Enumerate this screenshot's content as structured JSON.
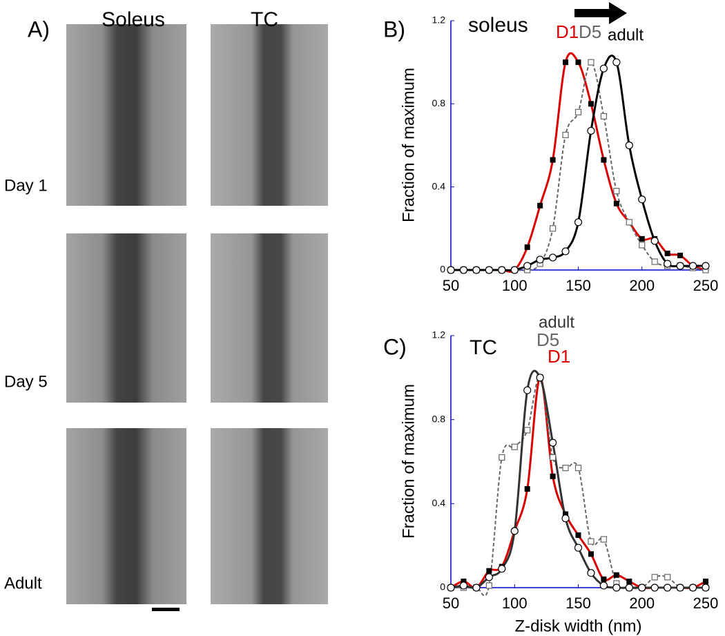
{
  "panel_a": {
    "label": "A)",
    "columns": [
      "Soleus",
      "TC"
    ],
    "rows": [
      "Day 1",
      "Day 5",
      "Adult"
    ]
  },
  "chart_data": [
    {
      "type": "line",
      "panel_label": "B)",
      "title": "soleus",
      "y_label": "Fraction of maximum",
      "x": [
        50,
        60,
        70,
        80,
        90,
        100,
        110,
        120,
        130,
        140,
        150,
        160,
        170,
        180,
        190,
        200,
        210,
        220,
        230,
        240,
        250
      ],
      "xlim": [
        50,
        250
      ],
      "xticks": [
        50,
        100,
        150,
        200,
        250
      ],
      "ylim": [
        0,
        1.2
      ],
      "yticks": [
        0,
        0.4,
        0.8,
        1.2
      ],
      "axis_color": "#0000cc",
      "series": [
        {
          "name": "D1",
          "color": "#dd0000",
          "marker": "filled-square",
          "marker_color": "#000000",
          "dashed": false,
          "values": [
            0,
            0,
            0,
            0,
            0,
            0,
            0.11,
            0.31,
            0.53,
            1.0,
            1.0,
            0.8,
            0.53,
            0.32,
            0.23,
            0.15,
            0.15,
            0.08,
            0.07,
            0.02,
            0
          ]
        },
        {
          "name": "D5",
          "color": "#666666",
          "marker": "open-square",
          "marker_color": "#666666",
          "dashed": true,
          "values": [
            0,
            0,
            0,
            0,
            0,
            0,
            0,
            0.03,
            0.2,
            0.65,
            0.76,
            1.0,
            0.74,
            0.38,
            0.23,
            0.12,
            0.04,
            0.02,
            0.02,
            0.01,
            0
          ]
        },
        {
          "name": "adult",
          "color": "#000000",
          "marker": "circle",
          "marker_color": "#000000",
          "dashed": false,
          "values": [
            0,
            0,
            0,
            0,
            0,
            0,
            0.02,
            0.05,
            0.06,
            0.09,
            0.23,
            0.67,
            0.97,
            1.0,
            0.6,
            0.34,
            0.14,
            0.03,
            0.02,
            0.02,
            0.02
          ]
        }
      ]
    },
    {
      "type": "line",
      "panel_label": "C)",
      "title": "TC",
      "y_label": "Fraction of maximum",
      "x_label": "Z-disk width (nm)",
      "x": [
        50,
        60,
        70,
        80,
        90,
        100,
        110,
        120,
        130,
        140,
        150,
        160,
        170,
        180,
        190,
        200,
        210,
        220,
        230,
        240,
        250
      ],
      "xlim": [
        50,
        250
      ],
      "xticks": [
        50,
        100,
        150,
        200,
        250
      ],
      "ylim": [
        0,
        1.2
      ],
      "yticks": [
        0,
        0.4,
        0.8,
        1.2
      ],
      "axis_color": "#0000cc",
      "series": [
        {
          "name": "D1",
          "color": "#dd0000",
          "marker": "filled-square",
          "marker_color": "#000000",
          "dashed": false,
          "values": [
            0,
            0.03,
            0,
            0.08,
            0.1,
            0.27,
            0.47,
            1.0,
            0.53,
            0.35,
            0.25,
            0.16,
            0.04,
            0.06,
            0.03,
            0,
            0,
            0,
            0,
            0,
            0.03
          ]
        },
        {
          "name": "D5",
          "color": "#666666",
          "marker": "open-square",
          "marker_color": "#666666",
          "dashed": true,
          "values": [
            0,
            0,
            0,
            0.01,
            0.62,
            0.67,
            0.75,
            1.0,
            0.62,
            0.57,
            0.57,
            0.22,
            0.23,
            0.02,
            0,
            0,
            0.05,
            0.05,
            0,
            0,
            0
          ]
        },
        {
          "name": "adult",
          "color": "#333333",
          "marker": "circle",
          "marker_color": "#000000",
          "dashed": false,
          "values": [
            0,
            0.01,
            0,
            0.05,
            0.09,
            0.27,
            0.94,
            1.0,
            0.69,
            0.33,
            0.19,
            0.07,
            0.01,
            0,
            0,
            0,
            0,
            0,
            0,
            0,
            0
          ]
        }
      ]
    }
  ]
}
